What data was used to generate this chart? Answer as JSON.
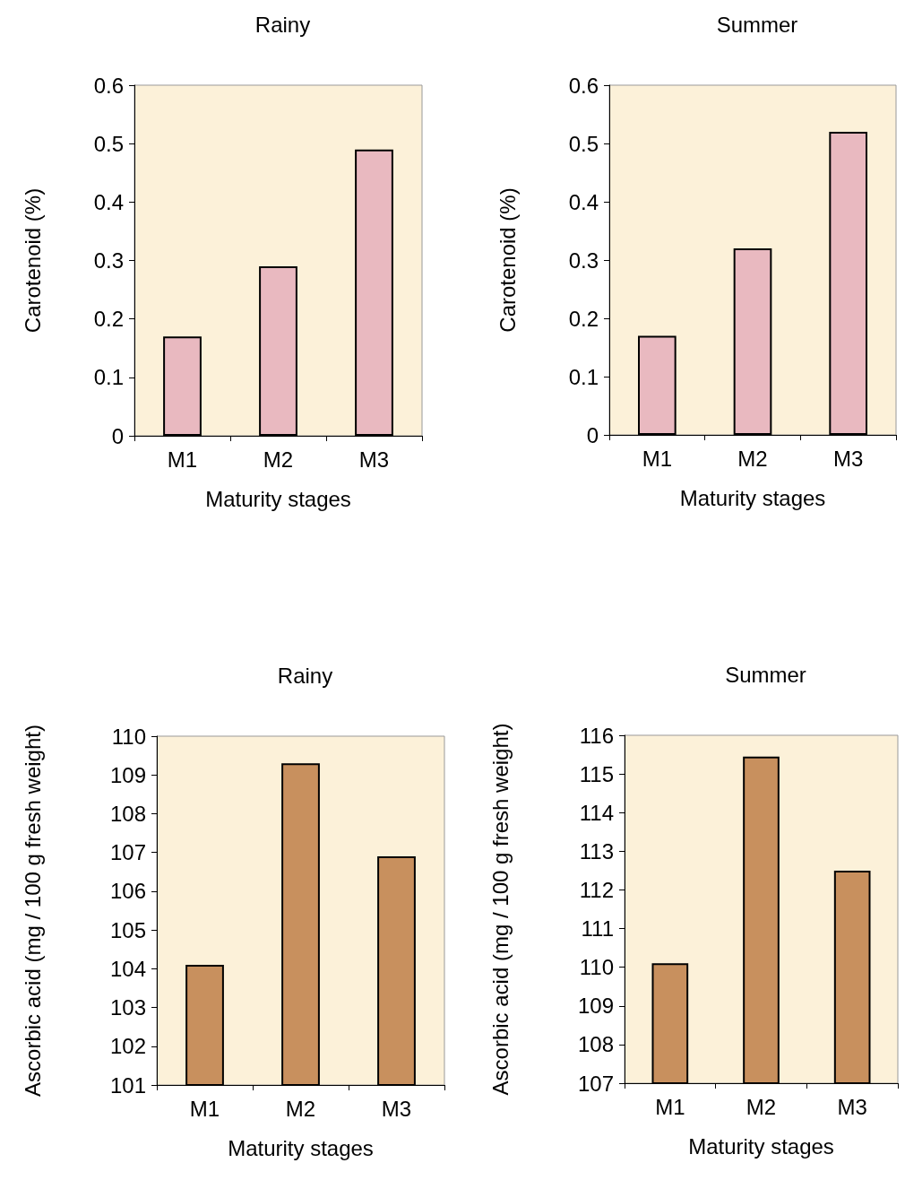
{
  "chart_data": [
    {
      "type": "bar",
      "title": "Rainy",
      "xlabel": "Maturity stages",
      "ylabel": "Carotenoid (%)",
      "categories": [
        "M1",
        "M2",
        "M3"
      ],
      "values": [
        0.17,
        0.29,
        0.49
      ],
      "color": "#e9b9c0",
      "ylim": [
        0,
        0.6
      ],
      "yticks": [
        0,
        0.1,
        0.2,
        0.3,
        0.4,
        0.5,
        0.6
      ]
    },
    {
      "type": "bar",
      "title": "Summer",
      "xlabel": "Maturity stages",
      "ylabel": "Carotenoid (%)",
      "categories": [
        "M1",
        "M2",
        "M3"
      ],
      "values": [
        0.17,
        0.32,
        0.52
      ],
      "color": "#e9b9c0",
      "ylim": [
        0,
        0.6
      ],
      "yticks": [
        0,
        0.1,
        0.2,
        0.3,
        0.4,
        0.5,
        0.6
      ]
    },
    {
      "type": "bar",
      "title": "Rainy",
      "xlabel": "Maturity stages",
      "ylabel": "Ascorbic acid (mg / 100 g fresh weight)",
      "categories": [
        "M1",
        "M2",
        "M3"
      ],
      "values": [
        104.1,
        109.3,
        106.9
      ],
      "color": "#c8905e",
      "ylim": [
        101,
        110
      ],
      "yticks": [
        101,
        102,
        103,
        104,
        105,
        106,
        107,
        108,
        109,
        110
      ]
    },
    {
      "type": "bar",
      "title": "Summer",
      "xlabel": "Maturity stages",
      "ylabel": "Ascorbic acid (mg / 100 g fresh weight)",
      "categories": [
        "M1",
        "M2",
        "M3"
      ],
      "values": [
        110.1,
        115.45,
        112.5
      ],
      "color": "#c8905e",
      "ylim": [
        107,
        116
      ],
      "yticks": [
        107,
        108,
        109,
        110,
        111,
        112,
        113,
        114,
        115,
        116
      ]
    }
  ]
}
